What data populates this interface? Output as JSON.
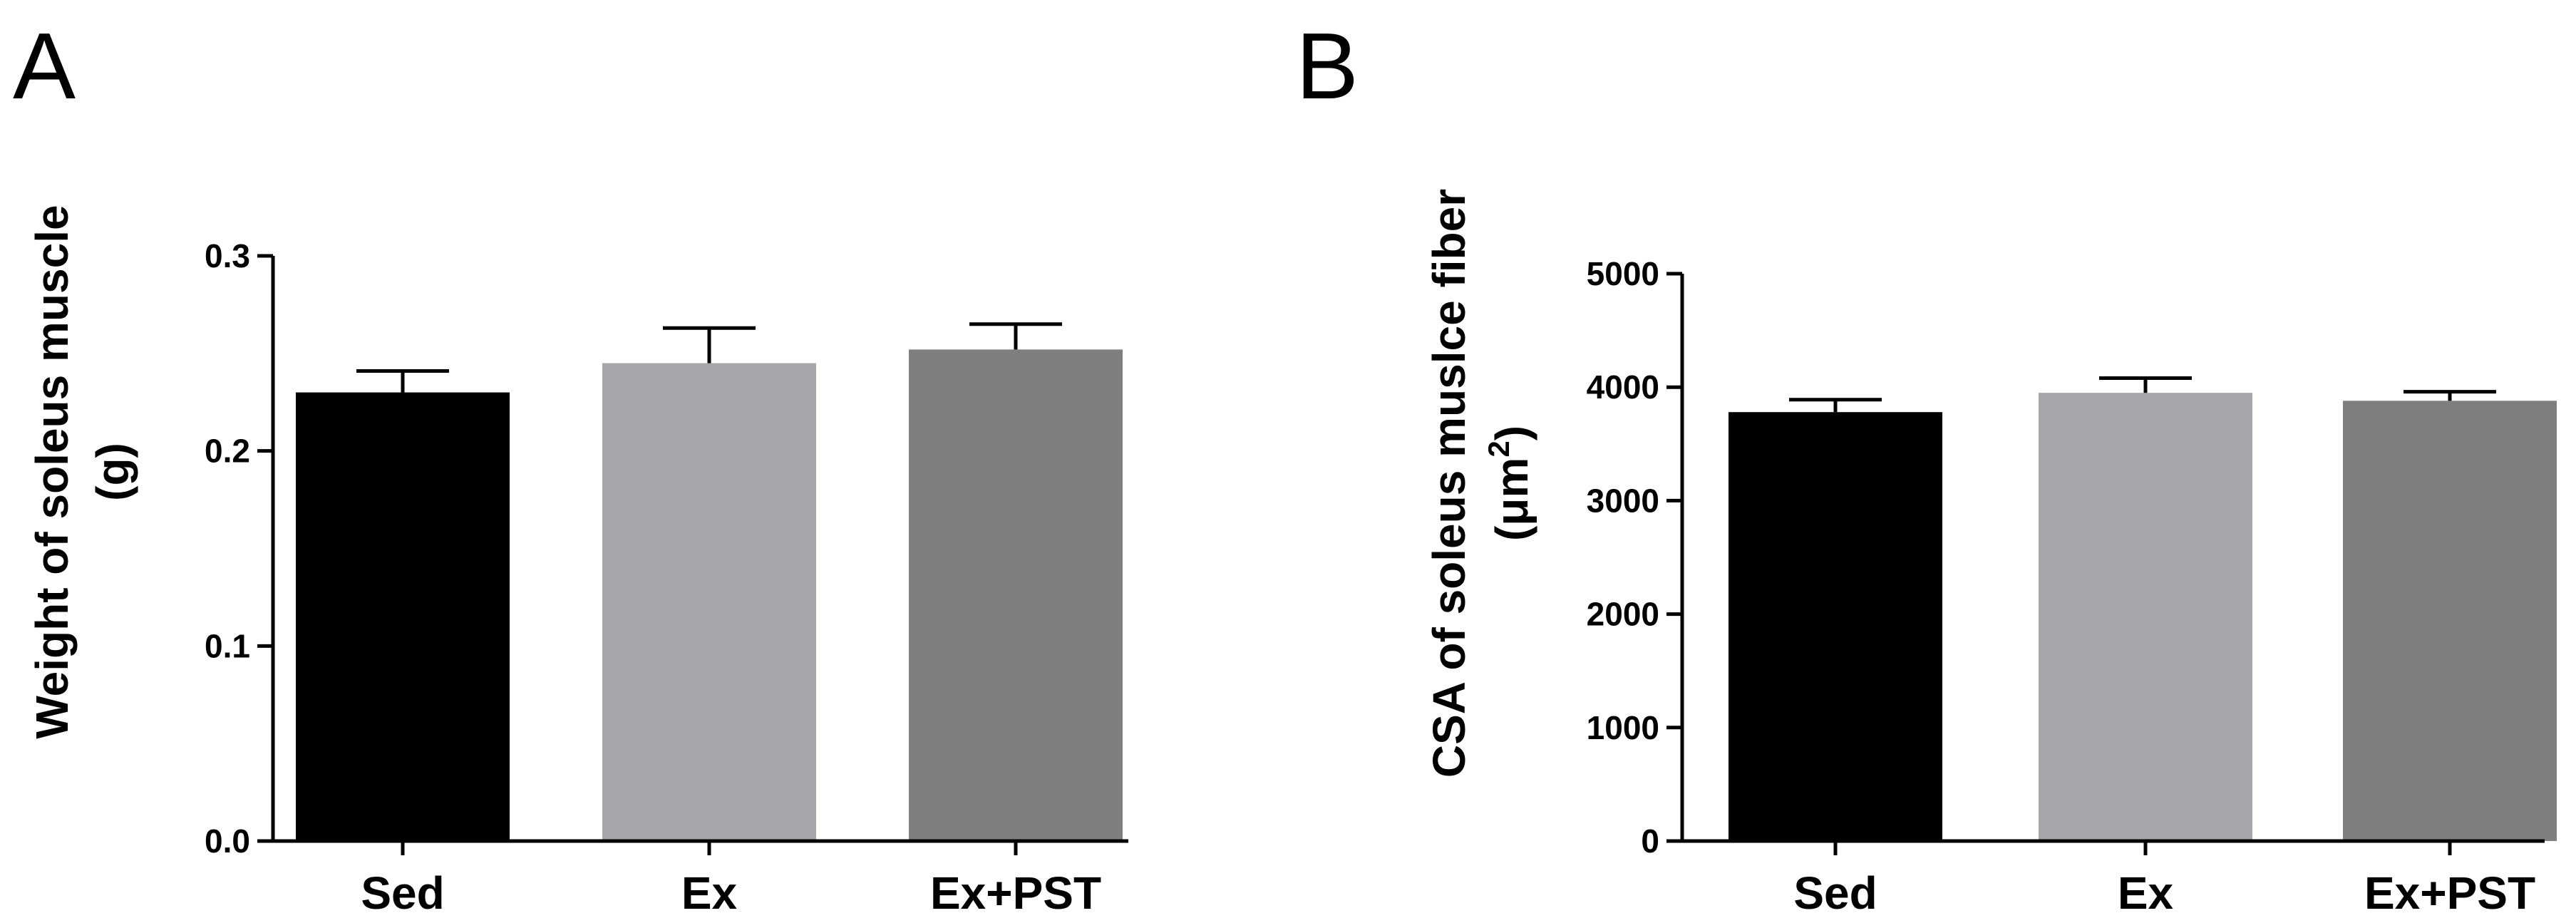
{
  "figure": {
    "panel_labels": [
      "A",
      "B"
    ]
  },
  "chart_data": [
    {
      "type": "bar",
      "panel": "A",
      "categories": [
        "Sed",
        "Ex",
        "Ex+PST"
      ],
      "values": [
        0.23,
        0.245,
        0.252
      ],
      "errors": [
        0.011,
        0.018,
        0.013
      ],
      "bar_colors": [
        "#000000",
        "#a6a5aa",
        "#7f7f7f"
      ],
      "ylabel_lines": [
        "Weight of soleus muscle",
        "(g)"
      ],
      "ylim": [
        0,
        0.3
      ],
      "yticks": [
        0.0,
        0.1,
        0.2,
        0.3
      ],
      "ytick_labels": [
        "0.0",
        "0.1",
        "0.2",
        "0.3"
      ],
      "grid": false,
      "legend": "none"
    },
    {
      "type": "bar",
      "panel": "B",
      "categories": [
        "Sed",
        "Ex",
        "Ex+PST"
      ],
      "values": [
        3780,
        3950,
        3880
      ],
      "errors": [
        110,
        130,
        80
      ],
      "bar_colors": [
        "#000000",
        "#a6a5aa",
        "#7f7f7f"
      ],
      "ylabel_lines": [
        "CSA of soleus muslce fiber",
        "(μm",
        "2",
        ")"
      ],
      "ylim": [
        0,
        5000
      ],
      "yticks": [
        0,
        1000,
        2000,
        3000,
        4000,
        5000
      ],
      "ytick_labels": [
        "0",
        "1000",
        "2000",
        "3000",
        "4000",
        "5000"
      ],
      "grid": false,
      "legend": "none"
    }
  ]
}
